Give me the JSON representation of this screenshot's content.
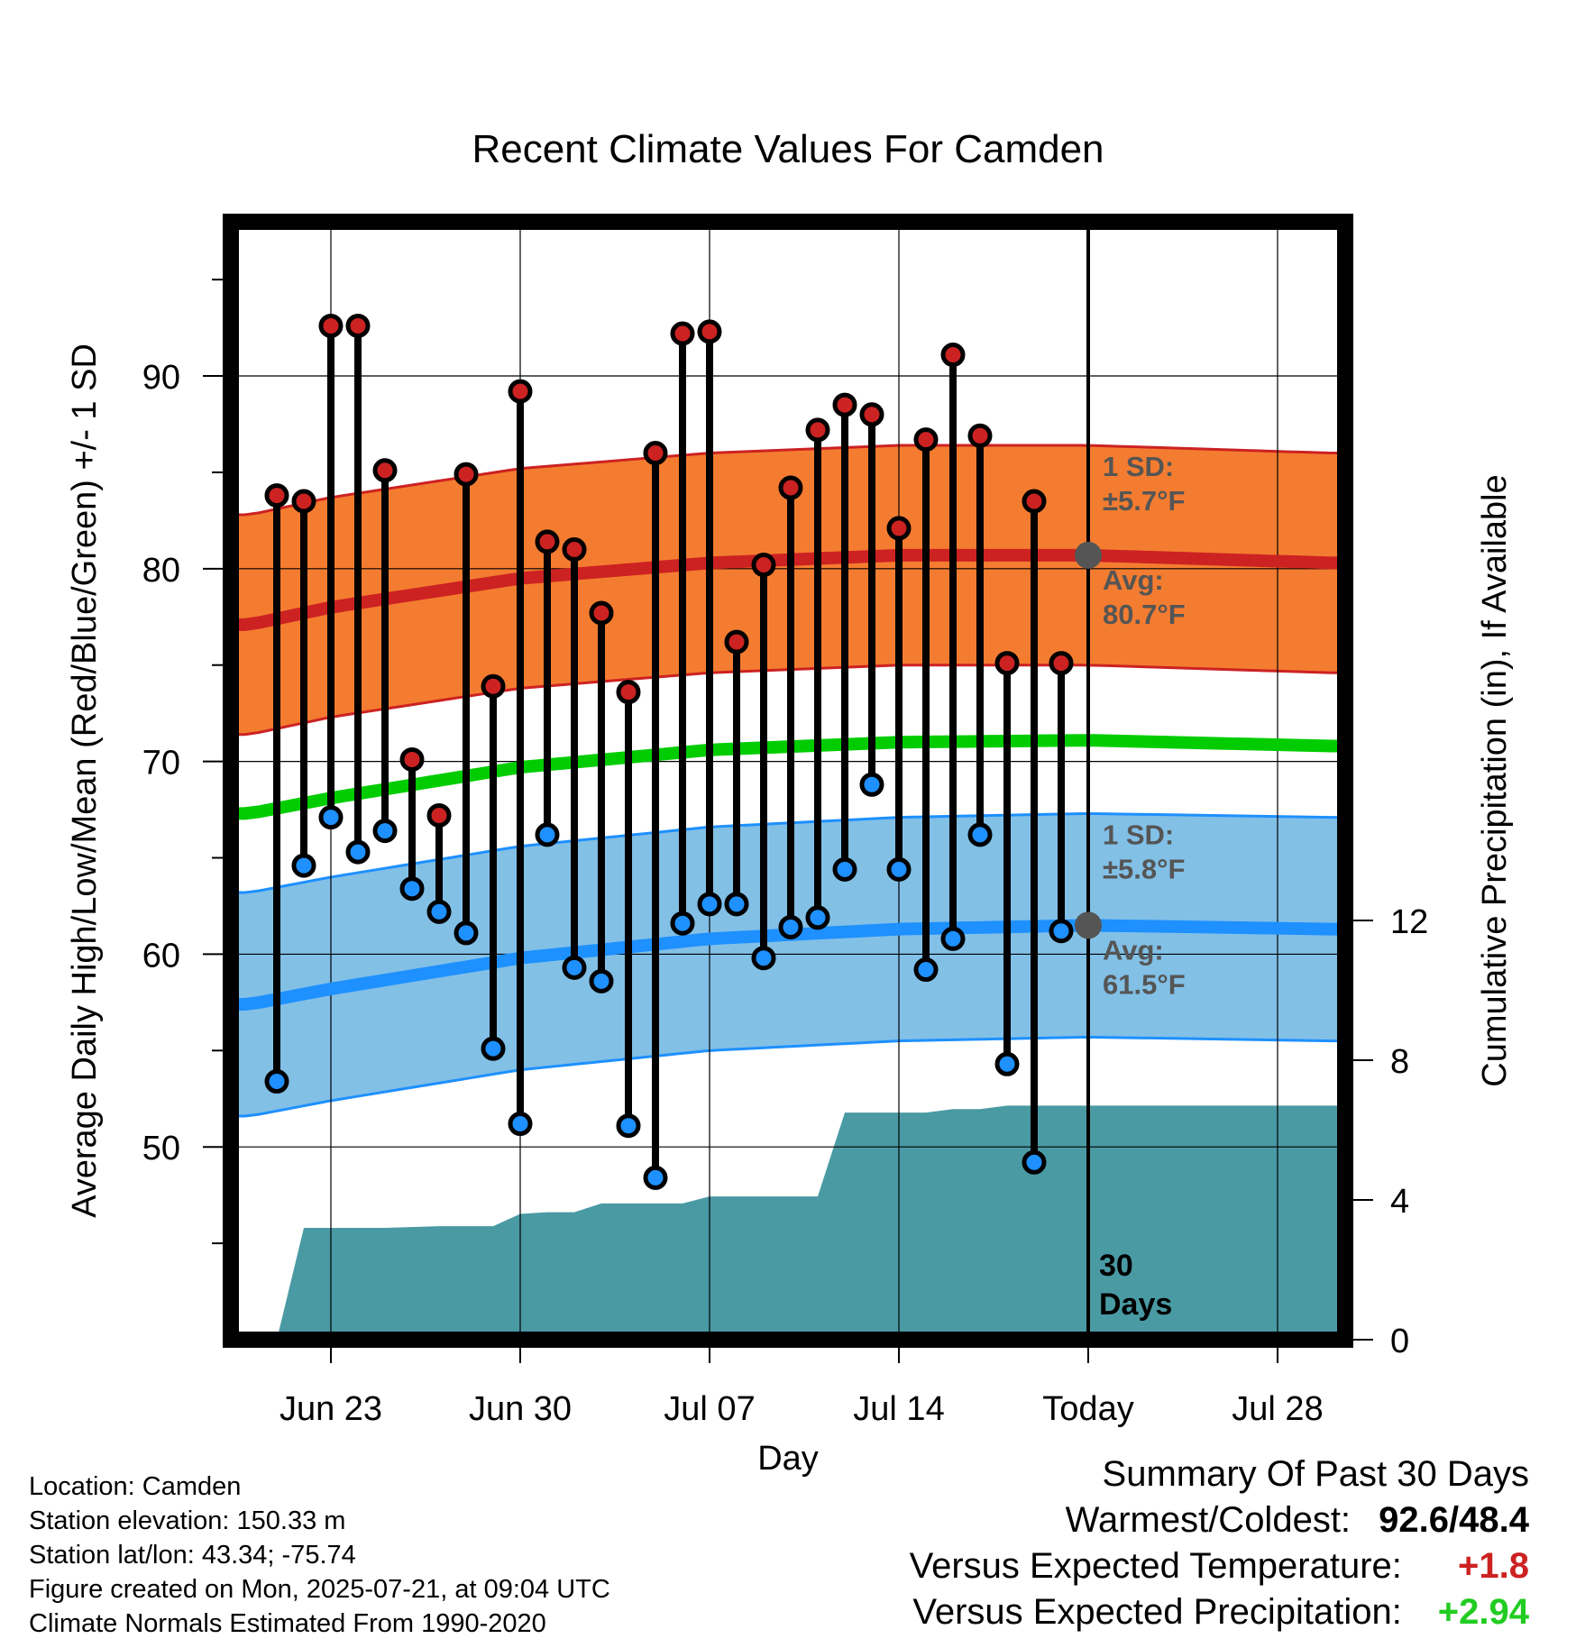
{
  "chart_data": {
    "type": "line",
    "title": "Recent Climate Values For Camden",
    "xlabel": "Day",
    "ylabel": "Average Daily High/Low/Mean (Red/Blue/Green) +/- 1 SD",
    "y2label": "Cumulative Precipitation (in), If Available",
    "xlim_day": [
      -3.7,
      37.5
    ],
    "ylim": [
      40,
      98
    ],
    "y2lim": [
      0,
      32
    ],
    "x_ticks": [
      {
        "day": 0,
        "label": "Jun 23"
      },
      {
        "day": 7,
        "label": "Jun 30"
      },
      {
        "day": 14,
        "label": "Jul 07"
      },
      {
        "day": 21,
        "label": "Jul 14"
      },
      {
        "day": 28,
        "label": "Today"
      },
      {
        "day": 35,
        "label": "Jul 28"
      }
    ],
    "y_ticks": [
      50,
      60,
      70,
      80,
      90
    ],
    "y2_ticks": [
      0,
      4,
      8,
      12
    ],
    "grid": true,
    "today_day": 28,
    "period_label_1": "30",
    "period_label_2": "Days",
    "normal_high": {
      "day": [
        -3,
        0,
        7,
        14,
        21,
        28,
        37
      ],
      "avg": [
        77.1,
        78.0,
        79.5,
        80.3,
        80.7,
        80.7,
        80.3
      ],
      "sd": 5.7,
      "sd_label_1": "1 SD:",
      "sd_label_2": "±5.7°F",
      "avg_label_1": "Avg:",
      "avg_label_2": "80.7°F"
    },
    "normal_low": {
      "day": [
        -3,
        0,
        7,
        14,
        21,
        28,
        37
      ],
      "avg": [
        57.4,
        58.2,
        59.8,
        60.8,
        61.3,
        61.5,
        61.3
      ],
      "sd": 5.8,
      "sd_label_1": "1 SD:",
      "sd_label_2": "±5.8°F",
      "avg_label_1": "Avg:",
      "avg_label_2": "61.5°F"
    },
    "normal_mean": {
      "day": [
        -3,
        0,
        7,
        14,
        21,
        28,
        37
      ],
      "avg": [
        67.3,
        68.1,
        69.7,
        70.6,
        71.0,
        71.1,
        70.8
      ]
    },
    "daily": [
      {
        "day": -2,
        "high": 83.8,
        "low": 53.4
      },
      {
        "day": -1,
        "high": 83.5,
        "low": 64.6
      },
      {
        "day": 0,
        "high": 92.6,
        "low": 67.1
      },
      {
        "day": 1,
        "high": 92.6,
        "low": 65.3
      },
      {
        "day": 2,
        "high": 85.1,
        "low": 66.4
      },
      {
        "day": 3,
        "high": 70.1,
        "low": 63.4
      },
      {
        "day": 4,
        "high": 67.2,
        "low": 62.2
      },
      {
        "day": 5,
        "high": 84.9,
        "low": 61.1
      },
      {
        "day": 6,
        "high": 73.9,
        "low": 55.1
      },
      {
        "day": 7,
        "high": 89.2,
        "low": 51.2
      },
      {
        "day": 8,
        "high": 81.4,
        "low": 66.2
      },
      {
        "day": 9,
        "high": 81.0,
        "low": 59.3
      },
      {
        "day": 10,
        "high": 77.7,
        "low": 58.6
      },
      {
        "day": 11,
        "high": 73.6,
        "low": 51.1
      },
      {
        "day": 12,
        "high": 86.0,
        "low": 48.4
      },
      {
        "day": 13,
        "high": 92.2,
        "low": 61.6
      },
      {
        "day": 14,
        "high": 92.3,
        "low": 62.6
      },
      {
        "day": 15,
        "high": 76.2,
        "low": 62.6
      },
      {
        "day": 16,
        "high": 80.2,
        "low": 59.8
      },
      {
        "day": 17,
        "high": 84.2,
        "low": 61.4
      },
      {
        "day": 18,
        "high": 87.2,
        "low": 61.9
      },
      {
        "day": 19,
        "high": 88.5,
        "low": 64.4
      },
      {
        "day": 20,
        "high": 88.0,
        "low": 68.8
      },
      {
        "day": 21,
        "high": 82.1,
        "low": 64.4
      },
      {
        "day": 22,
        "high": 86.7,
        "low": 59.2
      },
      {
        "day": 23,
        "high": 91.1,
        "low": 60.8
      },
      {
        "day": 24,
        "high": 86.9,
        "low": 66.2
      },
      {
        "day": 25,
        "high": 75.1,
        "low": 54.3
      },
      {
        "day": 26,
        "high": 83.5,
        "low": 49.2
      },
      {
        "day": 27,
        "high": 75.1,
        "low": 61.2
      }
    ],
    "precip_cumulative": {
      "day": [
        -2,
        -1,
        2,
        4,
        6,
        7,
        8,
        9,
        10,
        12,
        13,
        14,
        18,
        19,
        21,
        22,
        23,
        24,
        25,
        26,
        28,
        37.5
      ],
      "in": [
        0,
        3.2,
        3.2,
        3.25,
        3.25,
        3.6,
        3.65,
        3.65,
        3.9,
        3.9,
        3.9,
        4.1,
        4.1,
        6.5,
        6.5,
        6.5,
        6.6,
        6.6,
        6.7,
        6.7,
        6.7,
        6.7
      ]
    }
  },
  "footer": {
    "location": "Location: Camden",
    "elevation": "Station elevation: 150.33 m",
    "latlon": "Station lat/lon: 43.34; -75.74",
    "created": "Figure created on Mon, 2025-07-21, at 09:04 UTC",
    "normals": "Climate Normals Estimated From 1990-2020"
  },
  "summary": {
    "heading": "Summary Of Past 30 Days",
    "warmest_label": "Warmest/Coldest:",
    "warmest_value": "92.6/48.4",
    "temp_label": "Versus Expected Temperature:",
    "temp_value": "+1.8",
    "precip_label": "Versus Expected Precipitation:",
    "precip_value": "+2.94"
  },
  "colors": {
    "high_band": "#f47c30",
    "high_line": "#cc2222",
    "low_band": "#82c0e6",
    "low_line": "#1e90ff",
    "mean_line": "#00cc00",
    "precip_fill": "#4a9aa4",
    "high_marker": "#cc2222",
    "low_marker": "#1e90ff",
    "avg_marker": "#555555"
  }
}
